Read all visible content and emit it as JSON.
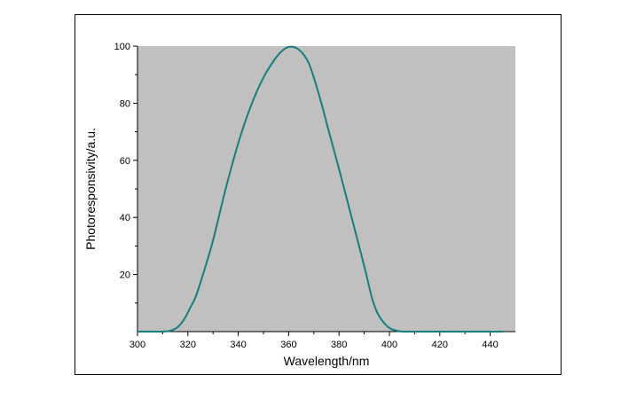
{
  "chart_data": {
    "type": "line",
    "title": "",
    "xlabel": "Wavelength/nm",
    "ylabel": "Photoresponsivity/a.u.",
    "xlim": [
      300,
      450
    ],
    "ylim": [
      0,
      100
    ],
    "x_ticks": [
      300,
      320,
      340,
      360,
      380,
      400,
      420,
      440
    ],
    "y_ticks": [
      20,
      40,
      60,
      80,
      100
    ],
    "grid": false,
    "legend": "none",
    "colors": {
      "plot_background": "#c0c0c0",
      "line": "#137f80",
      "axis": "#000000"
    },
    "series": [
      {
        "x": [
          300,
          305,
          310,
          313,
          315,
          317,
          319,
          321,
          323,
          326,
          330,
          335,
          340,
          345,
          350,
          355,
          358,
          360,
          362,
          364,
          366,
          368,
          370,
          373,
          376,
          380,
          385,
          390,
          393,
          395,
          397,
          399,
          401,
          403,
          405,
          410,
          420,
          430,
          440,
          445
        ],
        "y": [
          0,
          0,
          0,
          0.3,
          1,
          2.5,
          5,
          8.5,
          12,
          20,
          32,
          50,
          66,
          79,
          89,
          96,
          98.8,
          99.7,
          99.7,
          98.8,
          97,
          94,
          89,
          80,
          70,
          57,
          40,
          23,
          12,
          7,
          4,
          2,
          0.8,
          0.3,
          0,
          0,
          0,
          0,
          0,
          0
        ]
      }
    ]
  }
}
